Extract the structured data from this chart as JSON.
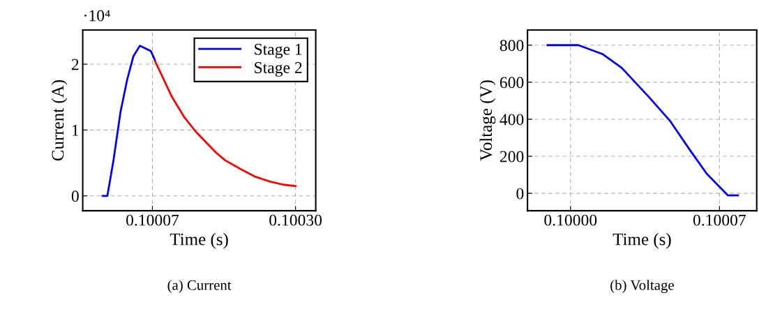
{
  "chart_data": [
    {
      "type": "line",
      "title": "(a) Current",
      "xlabel": "Time (s)",
      "ylabel": "Current (A)",
      "annotations": [
        "·10⁴"
      ],
      "xlim": [
        0.099958,
        0.1003325
      ],
      "ylim": [
        -0.226,
        2.52
      ],
      "xticks": [
        {
          "value": 0.10007,
          "label": "0.10007"
        },
        {
          "value": 0.1003,
          "label": "0.10030"
        }
      ],
      "yticks": [
        0,
        1,
        2
      ],
      "grid": true,
      "legend": "top right",
      "line_style": "solid",
      "series": [
        {
          "name": "Stage 1",
          "color": "#0000ff",
          "x": [
            0.09999,
            0.0999976,
            0.1000076,
            0.1000188,
            0.1000293,
            0.1000394,
            0.1000498,
            0.1000674,
            0.1000741
          ],
          "values": [
            0,
            0,
            0.55,
            1.28,
            1.76,
            2.12,
            2.28,
            2.2,
            2.06
          ]
        },
        {
          "name": "Stage 2",
          "color": "#ff0000",
          "x": [
            0.1000741,
            0.1000861,
            0.100101,
            0.1001215,
            0.1001402,
            0.1001719,
            0.1001869,
            0.100213,
            0.1002354,
            0.1002578,
            0.1002802,
            0.1003
          ],
          "values": [
            2.05,
            1.81,
            1.51,
            1.19,
            0.97,
            0.66,
            0.54,
            0.4,
            0.29,
            0.22,
            0.17,
            0.15
          ]
        }
      ]
    },
    {
      "type": "line",
      "title": "(b) Voltage",
      "xlabel": "Time (s)",
      "ylabel": "Voltage (V)",
      "xlim": [
        0.0999798,
        0.1000875
      ],
      "ylim": [
        -94,
        882
      ],
      "xticks": [
        {
          "value": 0.1,
          "label": "0.10000"
        },
        {
          "value": 0.10007,
          "label": "0.10007"
        }
      ],
      "yticks": [
        0,
        200,
        400,
        600,
        800
      ],
      "grid": true,
      "line_style": "solid",
      "series": [
        {
          "color": "#0000ff",
          "x": [
            0.0999892,
            0.1000037,
            0.100015,
            0.1000241,
            0.100037,
            0.1000467,
            0.1000564,
            0.100064,
            0.1000739,
            0.1000787
          ],
          "values": [
            800,
            800,
            752,
            677,
            518,
            392,
            229,
            106,
            -11,
            -11
          ]
        }
      ]
    }
  ]
}
